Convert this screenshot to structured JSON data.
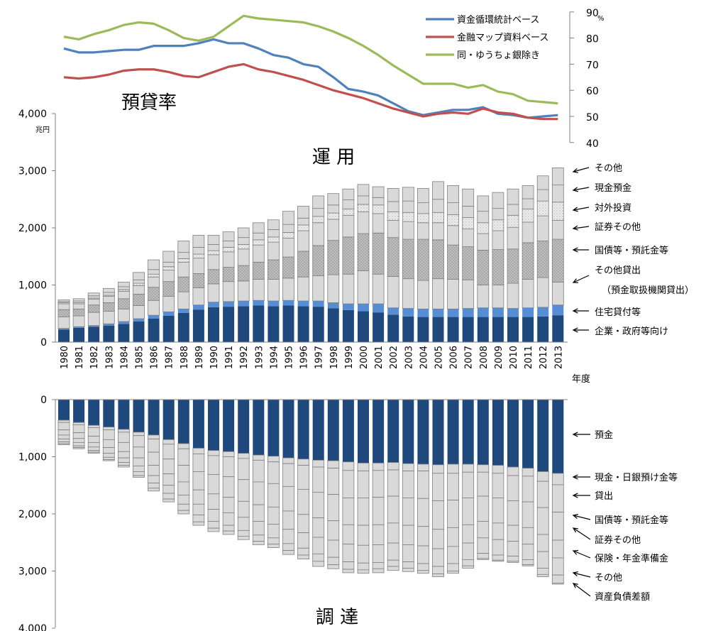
{
  "chart_data": [
    {
      "type": "line",
      "title": "預貸率",
      "y_unit": "%",
      "ylim": [
        40,
        90
      ],
      "yticks": [
        40,
        50,
        60,
        70,
        80,
        90
      ],
      "x": [
        1980,
        1981,
        1982,
        1983,
        1984,
        1985,
        1986,
        1987,
        1988,
        1989,
        1990,
        1991,
        1992,
        1993,
        1994,
        1995,
        1996,
        1997,
        1998,
        1999,
        2000,
        2001,
        2002,
        2003,
        2004,
        2005,
        2006,
        2007,
        2008,
        2009,
        2010,
        2011,
        2012,
        2013
      ],
      "legend_position": "top-right",
      "series": [
        {
          "name": "資金循環統計ベース",
          "color": "#4f81bd",
          "values": [
            76,
            74.5,
            74.5,
            75,
            75.5,
            75.5,
            77,
            77,
            77,
            78,
            79.5,
            78,
            78,
            76,
            73.5,
            72.5,
            70,
            69,
            65,
            60.5,
            59.5,
            58,
            55,
            52,
            50.5,
            51.5,
            52.5,
            52.5,
            53.5,
            51,
            50.5,
            49.5,
            50,
            50.5
          ]
        },
        {
          "name": "金融マップ資料ベース",
          "color": "#c0504d",
          "values": [
            65,
            64.5,
            65,
            66,
            67.5,
            68,
            68,
            67,
            65.5,
            65,
            67,
            69,
            70,
            68,
            67,
            65.5,
            64,
            62,
            60,
            58.5,
            57,
            55,
            53,
            51.5,
            50,
            51,
            51.5,
            51,
            53,
            51.5,
            51,
            49.5,
            49,
            49
          ]
        },
        {
          "name": "同・ゆうちょ銀除き",
          "color": "#9bbb59",
          "values": [
            80.5,
            79.5,
            81.5,
            83,
            85,
            86,
            85.5,
            83,
            80,
            79,
            80.5,
            84.5,
            88.5,
            87.5,
            87,
            86.5,
            86,
            84.5,
            82.5,
            80,
            77,
            73.5,
            69.5,
            66,
            62.5,
            62.5,
            62.5,
            61,
            62,
            59.5,
            58.5,
            56,
            55.5,
            55
          ]
        }
      ]
    },
    {
      "type": "bar",
      "stacked": true,
      "title": "運 用",
      "y_unit": "兆円",
      "ylim": [
        0,
        4000
      ],
      "yticks": [
        "0",
        "1,000",
        "2,000",
        "3,000",
        "4,000"
      ],
      "categories": [
        "1980",
        "1981",
        "1982",
        "1983",
        "1984",
        "1985",
        "1986",
        "1987",
        "1988",
        "1989",
        "1990",
        "1991",
        "1992",
        "1993",
        "1994",
        "1995",
        "1996",
        "1997",
        "1998",
        "1999",
        "2000",
        "2001",
        "2002",
        "2003",
        "2004",
        "2005",
        "2006",
        "2007",
        "2008",
        "2009",
        "2010",
        "2011",
        "2012",
        "2013"
      ],
      "xlabel": "年度",
      "totals": [
        740,
        760,
        860,
        940,
        1050,
        1210,
        1440,
        1590,
        1770,
        1870,
        1870,
        1930,
        2000,
        2090,
        2160,
        2290,
        2380,
        2560,
        2600,
        2680,
        2760,
        2720,
        2690,
        2710,
        2690,
        2810,
        2740,
        2680,
        2560,
        2620,
        2680,
        2740,
        2910,
        3050
      ],
      "series": [
        {
          "name": "企業・政府等向け",
          "color": "#1f497d",
          "values": [
            220,
            250,
            270,
            290,
            320,
            360,
            410,
            460,
            510,
            570,
            610,
            620,
            630,
            640,
            630,
            640,
            630,
            620,
            590,
            560,
            540,
            520,
            480,
            450,
            440,
            440,
            440,
            440,
            440,
            440,
            440,
            440,
            450,
            470
          ]
        },
        {
          "name": "住宅貸付等",
          "color": "#558ed5",
          "values": [
            20,
            20,
            20,
            30,
            40,
            50,
            60,
            70,
            70,
            80,
            90,
            90,
            90,
            90,
            90,
            90,
            90,
            100,
            100,
            110,
            130,
            150,
            120,
            140,
            140,
            140,
            140,
            150,
            160,
            160,
            150,
            160,
            160,
            180
          ]
        },
        {
          "name": "その他貸出（預金取扱機関貸出）",
          "color": "#d9d9d9",
          "values": [
            200,
            190,
            230,
            220,
            220,
            230,
            260,
            270,
            300,
            300,
            320,
            350,
            350,
            370,
            380,
            390,
            420,
            440,
            490,
            520,
            580,
            520,
            550,
            520,
            500,
            530,
            520,
            500,
            400,
            400,
            440,
            500,
            520,
            400
          ]
        },
        {
          "name": "国債等・預託金等",
          "color": "#bfbfbf",
          "values": [
            130,
            120,
            130,
            150,
            180,
            200,
            230,
            260,
            260,
            250,
            250,
            250,
            270,
            300,
            340,
            370,
            450,
            530,
            600,
            650,
            650,
            720,
            680,
            690,
            720,
            680,
            600,
            580,
            610,
            620,
            600,
            640,
            640,
            750
          ]
        },
        {
          "name": "証券その他",
          "color": "#d9d9d9",
          "values": [
            100,
            90,
            100,
            110,
            130,
            150,
            180,
            200,
            260,
            270,
            260,
            270,
            290,
            300,
            310,
            330,
            360,
            400,
            370,
            380,
            380,
            340,
            300,
            310,
            290,
            300,
            340,
            310,
            290,
            330,
            380,
            360,
            440,
            330
          ]
        },
        {
          "name": "対外投資",
          "color": "#e7e7e7",
          "values": [
            20,
            20,
            20,
            20,
            30,
            40,
            50,
            60,
            60,
            70,
            70,
            80,
            80,
            90,
            90,
            100,
            100,
            110,
            110,
            110,
            130,
            150,
            150,
            160,
            160,
            180,
            190,
            200,
            190,
            190,
            210,
            230,
            260,
            320
          ]
        },
        {
          "name": "現金預金",
          "color": "#d9d9d9",
          "values": [
            20,
            30,
            40,
            50,
            50,
            60,
            80,
            80,
            110,
            120,
            110,
            110,
            120,
            120,
            130,
            140,
            120,
            140,
            140,
            160,
            150,
            130,
            180,
            200,
            190,
            230,
            210,
            200,
            200,
            200,
            190,
            180,
            200,
            300
          ]
        },
        {
          "name": "その他",
          "color": "#d9d9d9",
          "values": [
            30,
            40,
            50,
            70,
            80,
            130,
            170,
            190,
            200,
            210,
            160,
            160,
            170,
            180,
            170,
            230,
            210,
            220,
            200,
            190,
            200,
            190,
            230,
            240,
            250,
            310,
            300,
            300,
            270,
            280,
            270,
            230,
            240,
            300
          ]
        }
      ]
    },
    {
      "type": "bar",
      "stacked": true,
      "title": "調 達",
      "ylim": [
        0,
        4000
      ],
      "yticks": [
        "0",
        "1,000",
        "2,000",
        "3,000",
        "4,000"
      ],
      "categories": [
        "1980",
        "1981",
        "1982",
        "1983",
        "1984",
        "1985",
        "1986",
        "1987",
        "1988",
        "1989",
        "1990",
        "1991",
        "1992",
        "1993",
        "1994",
        "1995",
        "1996",
        "1997",
        "1998",
        "1999",
        "2000",
        "2001",
        "2002",
        "2003",
        "2004",
        "2005",
        "2006",
        "2007",
        "2008",
        "2009",
        "2010",
        "2011",
        "2012",
        "2013"
      ],
      "totals": [
        790,
        860,
        940,
        1070,
        1180,
        1360,
        1600,
        1790,
        2000,
        2200,
        2310,
        2360,
        2450,
        2540,
        2590,
        2710,
        2790,
        2920,
        2960,
        3030,
        3040,
        3030,
        2990,
        3010,
        3040,
        3100,
        3040,
        2950,
        2800,
        2830,
        2850,
        2910,
        3100,
        3230
      ],
      "series": [
        {
          "name": "預金",
          "color": "#1f497d",
          "values": [
            360,
            400,
            450,
            480,
            520,
            570,
            620,
            700,
            770,
            850,
            890,
            910,
            940,
            970,
            990,
            1020,
            1040,
            1060,
            1070,
            1090,
            1110,
            1110,
            1100,
            1120,
            1130,
            1140,
            1130,
            1130,
            1140,
            1150,
            1180,
            1200,
            1260,
            1290
          ]
        },
        {
          "name": "現金・日銀預け金等",
          "color": "#d9d9d9",
          "values": [
            40,
            40,
            40,
            50,
            50,
            60,
            70,
            80,
            90,
            100,
            90,
            90,
            90,
            90,
            100,
            100,
            110,
            120,
            130,
            150,
            140,
            130,
            130,
            130,
            120,
            150,
            160,
            140,
            130,
            140,
            150,
            140,
            170,
            200
          ]
        },
        {
          "name": "貸出",
          "color": "#d9d9d9",
          "values": [
            130,
            140,
            150,
            170,
            180,
            200,
            230,
            260,
            290,
            310,
            330,
            350,
            370,
            380,
            380,
            400,
            420,
            440,
            460,
            480,
            470,
            470,
            460,
            470,
            480,
            480,
            470,
            450,
            420,
            430,
            440,
            450,
            460,
            480
          ]
        },
        {
          "name": "国債等・預託金等",
          "color": "#d9d9d9",
          "values": [
            90,
            100,
            110,
            140,
            160,
            190,
            230,
            260,
            290,
            320,
            340,
            360,
            380,
            400,
            410,
            430,
            440,
            450,
            460,
            470,
            480,
            480,
            470,
            480,
            490,
            500,
            480,
            470,
            440,
            440,
            430,
            450,
            470,
            490
          ]
        },
        {
          "name": "証券その他",
          "color": "#d9d9d9",
          "values": [
            70,
            70,
            80,
            100,
            110,
            140,
            180,
            200,
            230,
            250,
            270,
            270,
            280,
            290,
            300,
            320,
            320,
            340,
            340,
            340,
            350,
            350,
            350,
            340,
            340,
            340,
            330,
            320,
            290,
            290,
            280,
            290,
            300,
            310
          ]
        },
        {
          "name": "保険・年金準備金",
          "color": "#d9d9d9",
          "values": [
            50,
            60,
            60,
            70,
            80,
            100,
            130,
            140,
            160,
            190,
            210,
            220,
            230,
            240,
            240,
            250,
            270,
            290,
            300,
            310,
            310,
            310,
            300,
            300,
            310,
            310,
            300,
            290,
            270,
            270,
            260,
            270,
            290,
            300
          ]
        },
        {
          "name": "その他",
          "color": "#d9d9d9",
          "values": [
            30,
            30,
            30,
            40,
            50,
            70,
            90,
            100,
            110,
            120,
            120,
            100,
            100,
            110,
            110,
            120,
            120,
            130,
            130,
            130,
            120,
            110,
            110,
            110,
            120,
            130,
            130,
            110,
            90,
            90,
            90,
            90,
            110,
            140
          ]
        },
        {
          "name": "資産負債差額",
          "color": "#d9d9d9",
          "values": [
            20,
            20,
            20,
            20,
            30,
            30,
            50,
            50,
            60,
            60,
            60,
            60,
            60,
            60,
            60,
            70,
            70,
            90,
            70,
            60,
            60,
            70,
            70,
            60,
            50,
            50,
            40,
            40,
            20,
            20,
            20,
            20,
            40,
            20
          ]
        }
      ]
    }
  ]
}
